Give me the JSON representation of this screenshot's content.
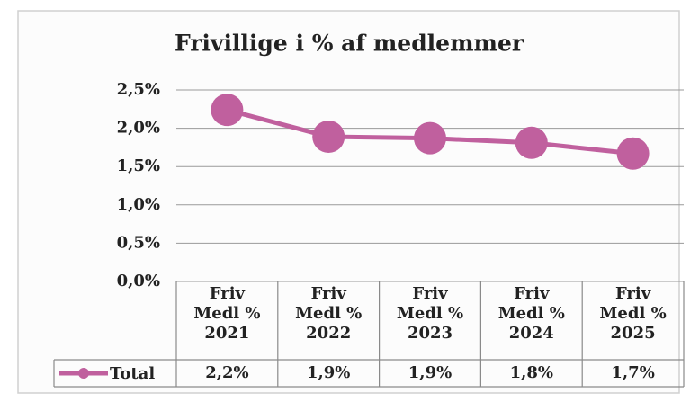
{
  "chart_data": {
    "type": "line",
    "title": "Frivillige i % af medlemmer",
    "categories": [
      "Friv\nMedl %\n2021",
      "Friv\nMedl %\n2022",
      "Friv\nMedl %\n2023",
      "Friv\nMedl %\n2024",
      "Friv\nMedl %\n2025"
    ],
    "series": [
      {
        "name": "Total",
        "color": "#c0609e",
        "values": [
          2.24,
          1.89,
          1.87,
          1.81,
          1.67
        ],
        "value_labels": [
          "2,2%",
          "1,9%",
          "1,9%",
          "1,8%",
          "1,7%"
        ]
      }
    ],
    "ylim": [
      0,
      2.5
    ],
    "yticks": [
      {
        "value": 0,
        "label": "0,0%"
      },
      {
        "value": 0.5,
        "label": "0,5%"
      },
      {
        "value": 1,
        "label": "1,0%"
      },
      {
        "value": 1.5,
        "label": "1,5%"
      },
      {
        "value": 2,
        "label": "2,0%"
      },
      {
        "value": 2.5,
        "label": "2,5%"
      }
    ],
    "grid": true
  }
}
